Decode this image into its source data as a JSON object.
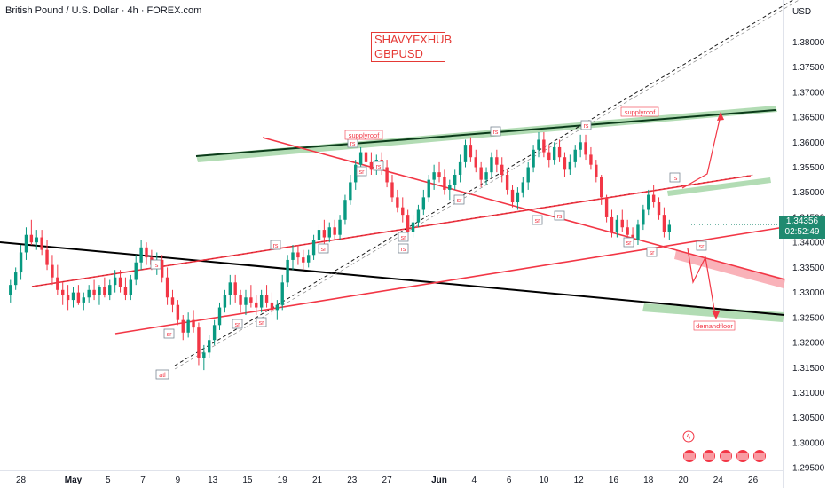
{
  "header": {
    "symbol_title": "British Pound / U.S. Dollar · 4h · FOREX.com",
    "currency": "USD"
  },
  "watermark": {
    "line1": "SHAVYFXHUB",
    "line2": "GBPUSD"
  },
  "price_badge": {
    "price": "1.34356",
    "countdown": "02:52:49",
    "color": "#1f8a70"
  },
  "chart_data": {
    "type": "candlestick",
    "y_axis": {
      "range": [
        1.2945,
        1.3884
      ],
      "ticks": [
        1.295,
        1.3,
        1.305,
        1.31,
        1.315,
        1.32,
        1.325,
        1.33,
        1.335,
        1.34,
        1.345,
        1.35,
        1.355,
        1.36,
        1.365,
        1.37,
        1.375,
        1.38
      ],
      "tick_labels": [
        "1.29500",
        "1.30000",
        "1.30500",
        "1.31000",
        "1.31500",
        "1.32000",
        "1.32500",
        "1.33000",
        "1.33500",
        "1.34000",
        "1.34500",
        "1.35000",
        "1.35500",
        "1.36000",
        "1.36500",
        "1.37000",
        "1.37500",
        "1.38000"
      ]
    },
    "x_axis": {
      "tick_labels": [
        "28",
        "May",
        "5",
        "7",
        "9",
        "13",
        "15",
        "19",
        "21",
        "23",
        "27",
        "Jun",
        "4",
        "6",
        "10",
        "12",
        "16",
        "18",
        "20",
        "24",
        "26"
      ],
      "tick_positions": [
        0,
        3,
        5,
        7,
        9,
        11,
        13,
        15,
        17,
        19,
        21,
        24,
        26,
        28,
        30,
        32,
        34,
        36,
        38,
        40,
        42
      ]
    },
    "x_range": [
      -1.2,
      43.7
    ],
    "up_color": "#089981",
    "down_color": "#f23645",
    "candles": [
      {
        "x": -0.6,
        "o": 1.3295,
        "h": 1.3325,
        "l": 1.328,
        "c": 1.3315
      },
      {
        "x": -0.3,
        "o": 1.3315,
        "h": 1.335,
        "l": 1.3305,
        "c": 1.334
      },
      {
        "x": 0.0,
        "o": 1.334,
        "h": 1.3395,
        "l": 1.3325,
        "c": 1.338
      },
      {
        "x": 0.3,
        "o": 1.338,
        "h": 1.343,
        "l": 1.3365,
        "c": 1.3415
      },
      {
        "x": 0.6,
        "o": 1.3415,
        "h": 1.3445,
        "l": 1.3395,
        "c": 1.34
      },
      {
        "x": 0.9,
        "o": 1.34,
        "h": 1.3425,
        "l": 1.3385,
        "c": 1.341
      },
      {
        "x": 1.2,
        "o": 1.341,
        "h": 1.3425,
        "l": 1.3375,
        "c": 1.3385
      },
      {
        "x": 1.5,
        "o": 1.3385,
        "h": 1.3405,
        "l": 1.3345,
        "c": 1.3355
      },
      {
        "x": 1.8,
        "o": 1.3355,
        "h": 1.3375,
        "l": 1.3315,
        "c": 1.333
      },
      {
        "x": 2.1,
        "o": 1.333,
        "h": 1.3355,
        "l": 1.3295,
        "c": 1.3305
      },
      {
        "x": 2.4,
        "o": 1.3305,
        "h": 1.332,
        "l": 1.3275,
        "c": 1.3295
      },
      {
        "x": 2.7,
        "o": 1.3295,
        "h": 1.3315,
        "l": 1.3265,
        "c": 1.3285
      },
      {
        "x": 3.0,
        "o": 1.3285,
        "h": 1.331,
        "l": 1.327,
        "c": 1.33
      },
      {
        "x": 3.3,
        "o": 1.33,
        "h": 1.3315,
        "l": 1.3275,
        "c": 1.328
      },
      {
        "x": 3.6,
        "o": 1.328,
        "h": 1.33,
        "l": 1.3265,
        "c": 1.329
      },
      {
        "x": 3.9,
        "o": 1.329,
        "h": 1.3315,
        "l": 1.328,
        "c": 1.3305
      },
      {
        "x": 4.2,
        "o": 1.3305,
        "h": 1.3325,
        "l": 1.3285,
        "c": 1.3295
      },
      {
        "x": 4.5,
        "o": 1.3295,
        "h": 1.3315,
        "l": 1.3275,
        "c": 1.331
      },
      {
        "x": 4.8,
        "o": 1.331,
        "h": 1.333,
        "l": 1.329,
        "c": 1.3295
      },
      {
        "x": 5.1,
        "o": 1.3295,
        "h": 1.3325,
        "l": 1.3285,
        "c": 1.3315
      },
      {
        "x": 5.4,
        "o": 1.3315,
        "h": 1.3345,
        "l": 1.33,
        "c": 1.333
      },
      {
        "x": 5.7,
        "o": 1.333,
        "h": 1.3345,
        "l": 1.33,
        "c": 1.331
      },
      {
        "x": 6.0,
        "o": 1.331,
        "h": 1.333,
        "l": 1.3285,
        "c": 1.3295
      },
      {
        "x": 6.3,
        "o": 1.3295,
        "h": 1.3335,
        "l": 1.3285,
        "c": 1.3325
      },
      {
        "x": 6.6,
        "o": 1.3325,
        "h": 1.3375,
        "l": 1.3315,
        "c": 1.336
      },
      {
        "x": 6.9,
        "o": 1.336,
        "h": 1.3405,
        "l": 1.3345,
        "c": 1.339
      },
      {
        "x": 7.2,
        "o": 1.339,
        "h": 1.34,
        "l": 1.3355,
        "c": 1.337
      },
      {
        "x": 7.5,
        "o": 1.337,
        "h": 1.3385,
        "l": 1.3345,
        "c": 1.3355
      },
      {
        "x": 7.8,
        "o": 1.3355,
        "h": 1.338,
        "l": 1.3335,
        "c": 1.3365
      },
      {
        "x": 8.1,
        "o": 1.3365,
        "h": 1.3375,
        "l": 1.332,
        "c": 1.333
      },
      {
        "x": 8.4,
        "o": 1.333,
        "h": 1.335,
        "l": 1.3275,
        "c": 1.329
      },
      {
        "x": 8.7,
        "o": 1.329,
        "h": 1.3305,
        "l": 1.326,
        "c": 1.3275
      },
      {
        "x": 9.0,
        "o": 1.3275,
        "h": 1.3285,
        "l": 1.3235,
        "c": 1.3245
      },
      {
        "x": 9.3,
        "o": 1.3245,
        "h": 1.3255,
        "l": 1.3205,
        "c": 1.322
      },
      {
        "x": 9.6,
        "o": 1.322,
        "h": 1.326,
        "l": 1.321,
        "c": 1.3245
      },
      {
        "x": 9.9,
        "o": 1.3245,
        "h": 1.3265,
        "l": 1.322,
        "c": 1.323
      },
      {
        "x": 10.2,
        "o": 1.323,
        "h": 1.324,
        "l": 1.3155,
        "c": 1.317
      },
      {
        "x": 10.5,
        "o": 1.317,
        "h": 1.3195,
        "l": 1.3145,
        "c": 1.318
      },
      {
        "x": 10.8,
        "o": 1.318,
        "h": 1.3215,
        "l": 1.317,
        "c": 1.3205
      },
      {
        "x": 11.1,
        "o": 1.3205,
        "h": 1.3245,
        "l": 1.3195,
        "c": 1.3235
      },
      {
        "x": 11.4,
        "o": 1.3235,
        "h": 1.328,
        "l": 1.3225,
        "c": 1.327
      },
      {
        "x": 11.7,
        "o": 1.327,
        "h": 1.3305,
        "l": 1.326,
        "c": 1.3295
      },
      {
        "x": 12.0,
        "o": 1.3295,
        "h": 1.3335,
        "l": 1.3275,
        "c": 1.332
      },
      {
        "x": 12.3,
        "o": 1.332,
        "h": 1.3335,
        "l": 1.328,
        "c": 1.3295
      },
      {
        "x": 12.6,
        "o": 1.3295,
        "h": 1.3305,
        "l": 1.326,
        "c": 1.3275
      },
      {
        "x": 12.9,
        "o": 1.3275,
        "h": 1.3305,
        "l": 1.3255,
        "c": 1.329
      },
      {
        "x": 13.2,
        "o": 1.329,
        "h": 1.3315,
        "l": 1.327,
        "c": 1.328
      },
      {
        "x": 13.5,
        "o": 1.328,
        "h": 1.3295,
        "l": 1.3255,
        "c": 1.327
      },
      {
        "x": 13.8,
        "o": 1.327,
        "h": 1.3305,
        "l": 1.326,
        "c": 1.3295
      },
      {
        "x": 14.1,
        "o": 1.3295,
        "h": 1.3315,
        "l": 1.327,
        "c": 1.328
      },
      {
        "x": 14.4,
        "o": 1.328,
        "h": 1.33,
        "l": 1.3255,
        "c": 1.3265
      },
      {
        "x": 14.7,
        "o": 1.3265,
        "h": 1.3285,
        "l": 1.3245,
        "c": 1.3275
      },
      {
        "x": 15.0,
        "o": 1.3275,
        "h": 1.3335,
        "l": 1.3265,
        "c": 1.332
      },
      {
        "x": 15.3,
        "o": 1.332,
        "h": 1.3375,
        "l": 1.331,
        "c": 1.3365
      },
      {
        "x": 15.6,
        "o": 1.3365,
        "h": 1.3395,
        "l": 1.3345,
        "c": 1.338
      },
      {
        "x": 15.9,
        "o": 1.338,
        "h": 1.3395,
        "l": 1.3355,
        "c": 1.337
      },
      {
        "x": 16.2,
        "o": 1.337,
        "h": 1.3385,
        "l": 1.3345,
        "c": 1.336
      },
      {
        "x": 16.5,
        "o": 1.336,
        "h": 1.3385,
        "l": 1.335,
        "c": 1.3375
      },
      {
        "x": 16.8,
        "o": 1.3375,
        "h": 1.3415,
        "l": 1.3365,
        "c": 1.3405
      },
      {
        "x": 17.1,
        "o": 1.3405,
        "h": 1.3435,
        "l": 1.339,
        "c": 1.3425
      },
      {
        "x": 17.4,
        "o": 1.3425,
        "h": 1.3445,
        "l": 1.3395,
        "c": 1.341
      },
      {
        "x": 17.7,
        "o": 1.341,
        "h": 1.344,
        "l": 1.34,
        "c": 1.343
      },
      {
        "x": 18.0,
        "o": 1.343,
        "h": 1.3445,
        "l": 1.3405,
        "c": 1.3415
      },
      {
        "x": 18.3,
        "o": 1.3415,
        "h": 1.3455,
        "l": 1.3405,
        "c": 1.3445
      },
      {
        "x": 18.6,
        "o": 1.3445,
        "h": 1.3495,
        "l": 1.3435,
        "c": 1.3485
      },
      {
        "x": 18.9,
        "o": 1.3485,
        "h": 1.3535,
        "l": 1.3475,
        "c": 1.352
      },
      {
        "x": 19.2,
        "o": 1.352,
        "h": 1.3565,
        "l": 1.3505,
        "c": 1.3555
      },
      {
        "x": 19.5,
        "o": 1.3555,
        "h": 1.359,
        "l": 1.354,
        "c": 1.358
      },
      {
        "x": 19.8,
        "o": 1.358,
        "h": 1.3595,
        "l": 1.3545,
        "c": 1.356
      },
      {
        "x": 20.1,
        "o": 1.356,
        "h": 1.358,
        "l": 1.3535,
        "c": 1.3545
      },
      {
        "x": 20.4,
        "o": 1.3545,
        "h": 1.3575,
        "l": 1.3535,
        "c": 1.3565
      },
      {
        "x": 20.7,
        "o": 1.3565,
        "h": 1.358,
        "l": 1.3535,
        "c": 1.355
      },
      {
        "x": 21.0,
        "o": 1.355,
        "h": 1.3565,
        "l": 1.351,
        "c": 1.352
      },
      {
        "x": 21.3,
        "o": 1.352,
        "h": 1.3535,
        "l": 1.348,
        "c": 1.349
      },
      {
        "x": 21.6,
        "o": 1.349,
        "h": 1.3505,
        "l": 1.346,
        "c": 1.347
      },
      {
        "x": 21.9,
        "o": 1.347,
        "h": 1.349,
        "l": 1.344,
        "c": 1.3455
      },
      {
        "x": 22.2,
        "o": 1.3455,
        "h": 1.3465,
        "l": 1.3405,
        "c": 1.342
      },
      {
        "x": 22.5,
        "o": 1.342,
        "h": 1.3455,
        "l": 1.341,
        "c": 1.344
      },
      {
        "x": 22.8,
        "o": 1.344,
        "h": 1.3475,
        "l": 1.343,
        "c": 1.3465
      },
      {
        "x": 23.1,
        "o": 1.3465,
        "h": 1.3505,
        "l": 1.3455,
        "c": 1.349
      },
      {
        "x": 23.4,
        "o": 1.349,
        "h": 1.3535,
        "l": 1.348,
        "c": 1.3525
      },
      {
        "x": 23.7,
        "o": 1.3525,
        "h": 1.3555,
        "l": 1.3505,
        "c": 1.354
      },
      {
        "x": 24.0,
        "o": 1.354,
        "h": 1.356,
        "l": 1.352,
        "c": 1.353
      },
      {
        "x": 24.3,
        "o": 1.353,
        "h": 1.3545,
        "l": 1.3495,
        "c": 1.3505
      },
      {
        "x": 24.6,
        "o": 1.3505,
        "h": 1.3525,
        "l": 1.3485,
        "c": 1.3515
      },
      {
        "x": 24.9,
        "o": 1.3515,
        "h": 1.3545,
        "l": 1.3505,
        "c": 1.3535
      },
      {
        "x": 25.2,
        "o": 1.3535,
        "h": 1.3575,
        "l": 1.352,
        "c": 1.356
      },
      {
        "x": 25.5,
        "o": 1.356,
        "h": 1.3605,
        "l": 1.355,
        "c": 1.3595
      },
      {
        "x": 25.8,
        "o": 1.3595,
        "h": 1.361,
        "l": 1.356,
        "c": 1.357
      },
      {
        "x": 26.1,
        "o": 1.357,
        "h": 1.3585,
        "l": 1.354,
        "c": 1.355
      },
      {
        "x": 26.4,
        "o": 1.355,
        "h": 1.356,
        "l": 1.351,
        "c": 1.3525
      },
      {
        "x": 26.7,
        "o": 1.3525,
        "h": 1.355,
        "l": 1.3515,
        "c": 1.354
      },
      {
        "x": 27.0,
        "o": 1.354,
        "h": 1.358,
        "l": 1.353,
        "c": 1.357
      },
      {
        "x": 27.3,
        "o": 1.357,
        "h": 1.3585,
        "l": 1.354,
        "c": 1.3555
      },
      {
        "x": 27.6,
        "o": 1.3555,
        "h": 1.357,
        "l": 1.352,
        "c": 1.3535
      },
      {
        "x": 27.9,
        "o": 1.3535,
        "h": 1.3545,
        "l": 1.3495,
        "c": 1.3505
      },
      {
        "x": 28.2,
        "o": 1.3505,
        "h": 1.3515,
        "l": 1.347,
        "c": 1.348
      },
      {
        "x": 28.5,
        "o": 1.348,
        "h": 1.351,
        "l": 1.3465,
        "c": 1.35
      },
      {
        "x": 28.8,
        "o": 1.35,
        "h": 1.353,
        "l": 1.349,
        "c": 1.352
      },
      {
        "x": 29.1,
        "o": 1.352,
        "h": 1.356,
        "l": 1.3505,
        "c": 1.355
      },
      {
        "x": 29.4,
        "o": 1.355,
        "h": 1.3595,
        "l": 1.354,
        "c": 1.3585
      },
      {
        "x": 29.7,
        "o": 1.3585,
        "h": 1.362,
        "l": 1.357,
        "c": 1.3605
      },
      {
        "x": 30.0,
        "o": 1.3605,
        "h": 1.362,
        "l": 1.357,
        "c": 1.358
      },
      {
        "x": 30.3,
        "o": 1.358,
        "h": 1.3595,
        "l": 1.355,
        "c": 1.3565
      },
      {
        "x": 30.6,
        "o": 1.3565,
        "h": 1.36,
        "l": 1.3555,
        "c": 1.359
      },
      {
        "x": 30.9,
        "o": 1.359,
        "h": 1.3605,
        "l": 1.356,
        "c": 1.357
      },
      {
        "x": 31.2,
        "o": 1.357,
        "h": 1.358,
        "l": 1.353,
        "c": 1.3545
      },
      {
        "x": 31.5,
        "o": 1.3545,
        "h": 1.3575,
        "l": 1.3535,
        "c": 1.356
      },
      {
        "x": 31.8,
        "o": 1.356,
        "h": 1.3595,
        "l": 1.355,
        "c": 1.3585
      },
      {
        "x": 32.1,
        "o": 1.3585,
        "h": 1.3615,
        "l": 1.357,
        "c": 1.36
      },
      {
        "x": 32.4,
        "o": 1.36,
        "h": 1.3615,
        "l": 1.3565,
        "c": 1.3575
      },
      {
        "x": 32.7,
        "o": 1.3575,
        "h": 1.359,
        "l": 1.3545,
        "c": 1.3555
      },
      {
        "x": 33.0,
        "o": 1.3555,
        "h": 1.3565,
        "l": 1.352,
        "c": 1.353
      },
      {
        "x": 33.3,
        "o": 1.353,
        "h": 1.3535,
        "l": 1.3475,
        "c": 1.349
      },
      {
        "x": 33.6,
        "o": 1.349,
        "h": 1.3495,
        "l": 1.344,
        "c": 1.345
      },
      {
        "x": 33.9,
        "o": 1.345,
        "h": 1.3465,
        "l": 1.341,
        "c": 1.342
      },
      {
        "x": 34.2,
        "o": 1.342,
        "h": 1.3455,
        "l": 1.341,
        "c": 1.3445
      },
      {
        "x": 34.5,
        "o": 1.3445,
        "h": 1.3465,
        "l": 1.342,
        "c": 1.343
      },
      {
        "x": 34.8,
        "o": 1.343,
        "h": 1.3445,
        "l": 1.3405,
        "c": 1.3415
      },
      {
        "x": 35.1,
        "o": 1.3415,
        "h": 1.343,
        "l": 1.3395,
        "c": 1.3405
      },
      {
        "x": 35.4,
        "o": 1.3405,
        "h": 1.3445,
        "l": 1.3395,
        "c": 1.3435
      },
      {
        "x": 35.7,
        "o": 1.3435,
        "h": 1.3475,
        "l": 1.3425,
        "c": 1.3465
      },
      {
        "x": 36.0,
        "o": 1.3465,
        "h": 1.3505,
        "l": 1.3455,
        "c": 1.3495
      },
      {
        "x": 36.3,
        "o": 1.3495,
        "h": 1.3515,
        "l": 1.347,
        "c": 1.348
      },
      {
        "x": 36.6,
        "o": 1.348,
        "h": 1.349,
        "l": 1.3445,
        "c": 1.3455
      },
      {
        "x": 36.9,
        "o": 1.3455,
        "h": 1.347,
        "l": 1.341,
        "c": 1.342
      },
      {
        "x": 37.2,
        "o": 1.342,
        "h": 1.3445,
        "l": 1.3405,
        "c": 1.3435
      }
    ]
  }
}
